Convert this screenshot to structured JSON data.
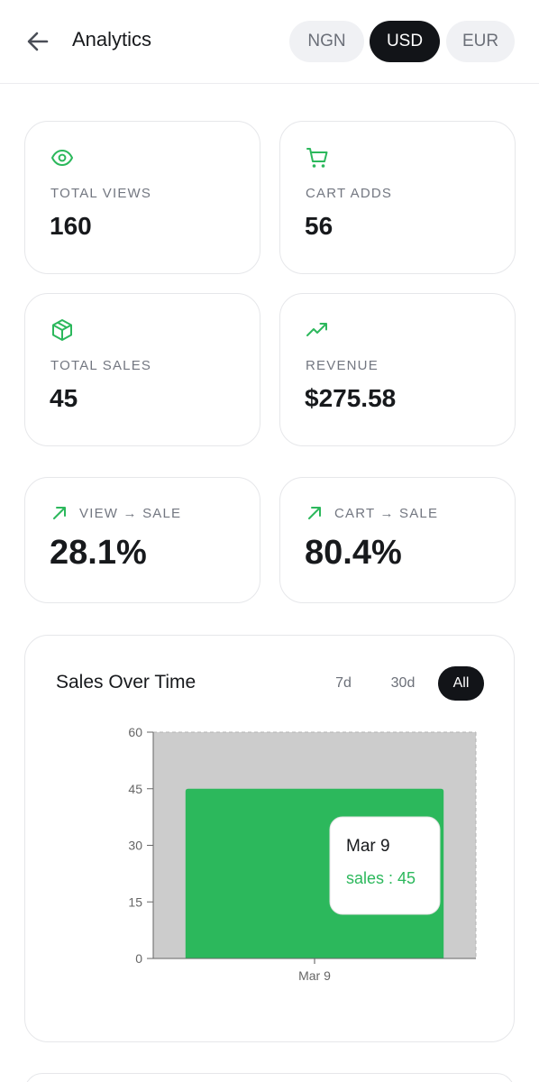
{
  "header": {
    "title": "Analytics",
    "currencies": [
      "NGN",
      "USD",
      "EUR"
    ],
    "selected_currency": "USD"
  },
  "stats": {
    "total_views": {
      "label": "TOTAL VIEWS",
      "value": "160",
      "icon": "eye-icon"
    },
    "cart_adds": {
      "label": "CART ADDS",
      "value": "56",
      "icon": "cart-icon"
    },
    "total_sales": {
      "label": "TOTAL SALES",
      "value": "45",
      "icon": "box-icon"
    },
    "revenue": {
      "label": "REVENUE",
      "value": "$275.58",
      "icon": "trending-up-icon"
    },
    "view_sale": {
      "label": "VIEW → SALE",
      "value": "28.1%",
      "icon": "arrow-up-right-icon"
    },
    "cart_sale": {
      "label": "CART → SALE",
      "value": "80.4%",
      "icon": "arrow-up-right-icon"
    }
  },
  "colors": {
    "accent": "#2cb85c",
    "dark": "#121418",
    "muted": "#737781",
    "plot_bg": "#cccccc"
  },
  "chart": {
    "title": "Sales Over Time",
    "ranges": [
      "7d",
      "30d",
      "All"
    ],
    "selected_range": "All",
    "tooltip": {
      "date": "Mar 9",
      "text": "sales : 45"
    }
  },
  "chart_data": {
    "type": "bar",
    "categories": [
      "Mar 9"
    ],
    "series": [
      {
        "name": "sales",
        "values": [
          45
        ]
      }
    ],
    "ylim": [
      0,
      60
    ],
    "yticks": [
      0,
      15,
      30,
      45,
      60
    ],
    "xlabel": "",
    "ylabel": "",
    "grid": false
  }
}
